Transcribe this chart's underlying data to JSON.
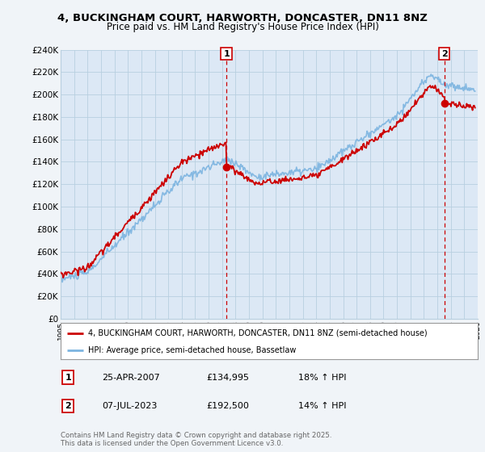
{
  "title_line1": "4, BUCKINGHAM COURT, HARWORTH, DONCASTER, DN11 8NZ",
  "title_line2": "Price paid vs. HM Land Registry's House Price Index (HPI)",
  "legend_property": "4, BUCKINGHAM COURT, HARWORTH, DONCASTER, DN11 8NZ (semi-detached house)",
  "legend_hpi": "HPI: Average price, semi-detached house, Bassetlaw",
  "annotation1_date": "25-APR-2007",
  "annotation1_price": "£134,995",
  "annotation1_hpi": "18% ↑ HPI",
  "annotation2_date": "07-JUL-2023",
  "annotation2_price": "£192,500",
  "annotation2_hpi": "14% ↑ HPI",
  "copyright": "Contains HM Land Registry data © Crown copyright and database right 2025.\nThis data is licensed under the Open Government Licence v3.0.",
  "ylim": [
    0,
    240000
  ],
  "yticks": [
    0,
    20000,
    40000,
    60000,
    80000,
    100000,
    120000,
    140000,
    160000,
    180000,
    200000,
    220000,
    240000
  ],
  "background_color": "#f0f4f8",
  "plot_background": "#dce8f5",
  "grid_color": "#b8cfe0",
  "property_color": "#cc0000",
  "hpi_color": "#7cb4e0",
  "vline_color": "#cc0000",
  "marker_color": "#cc0000",
  "sale1_x": 2007.32,
  "sale1_y": 134995,
  "sale2_x": 2023.52,
  "sale2_y": 192500,
  "xmin": 1995,
  "xmax": 2026
}
